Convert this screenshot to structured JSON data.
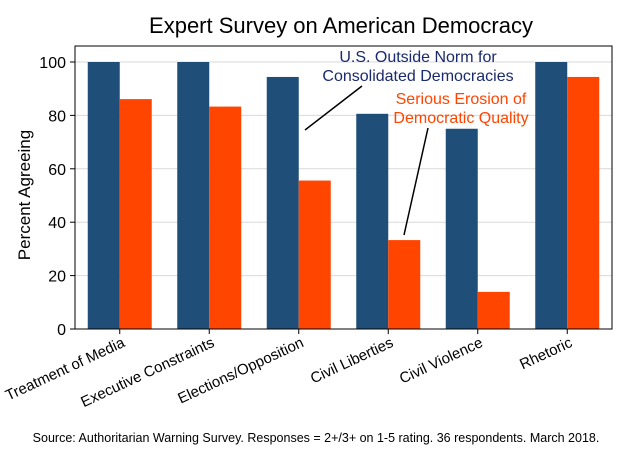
{
  "chart_data": {
    "type": "bar",
    "title": "Expert Survey on American Democracy",
    "xlabel": "",
    "ylabel": "Percent Agreeing",
    "ylim": [
      0,
      100
    ],
    "yticks": [
      0,
      20,
      40,
      60,
      80,
      100
    ],
    "grid": true,
    "categories": [
      "Treatment of Media",
      "Executive Constraints",
      "Elections/Opposition",
      "Civil Liberties",
      "Civil Violence",
      "Rhetoric"
    ],
    "series": [
      {
        "values": [
          100,
          100,
          94.4,
          80.6,
          75,
          100
        ],
        "color": "#1f4e79"
      },
      {
        "values": [
          86.1,
          83.3,
          55.6,
          33.3,
          13.9,
          94.4
        ],
        "color": "#ff4500"
      }
    ],
    "annotations": [
      {
        "text_lines": [
          "U.S. Outside Norm for",
          "Consolidated Democracies"
        ],
        "color": "#1a2a6c"
      },
      {
        "text_lines": [
          "Serious Erosion of",
          "Democratic Quality"
        ],
        "color": "#ff4500"
      }
    ],
    "source_note": "Source: Authoritarian Warning Survey. Responses = 2+/3+ on 1-5 rating. 36 respondents. March 2018."
  }
}
